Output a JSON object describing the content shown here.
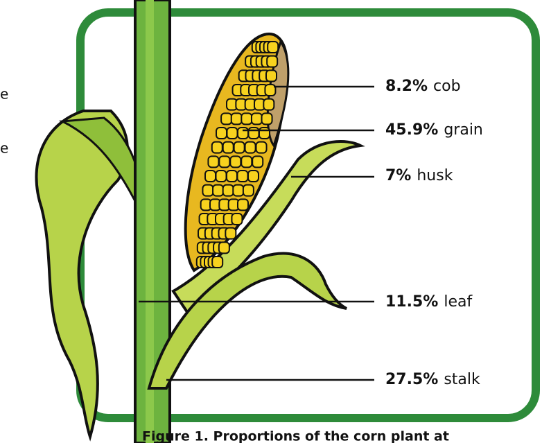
{
  "fragments": [
    "e",
    "e"
  ],
  "labels": [
    {
      "percent": "8.2%",
      "part": "cob"
    },
    {
      "percent": "45.9%",
      "part": "grain"
    },
    {
      "percent": "7%",
      "part": "husk"
    },
    {
      "percent": "11.5%",
      "part": "leaf"
    },
    {
      "percent": "27.5%",
      "part": "stalk"
    }
  ],
  "caption": "Figure 1. Proportions of the corn plant at"
}
